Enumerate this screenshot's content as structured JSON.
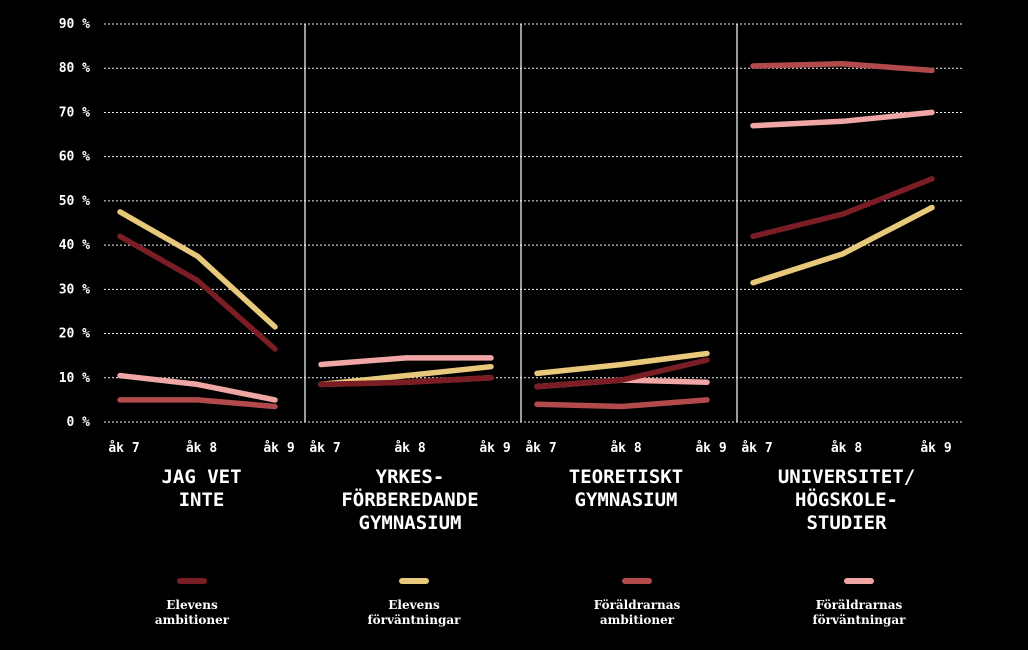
{
  "chart_data": {
    "type": "line",
    "ytick_labels": [
      "0 %",
      "10 %",
      "20 %",
      "30 %",
      "40 %",
      "50 %",
      "60 %",
      "70 %",
      "80 %",
      "90 %"
    ],
    "ylim": [
      0,
      90
    ],
    "grid": true,
    "legend_placement": "bottom",
    "x_labels": [
      "åk 7",
      "åk 8",
      "åk 9"
    ],
    "panels": [
      {
        "title_lines": [
          "JAG VET",
          "INTE"
        ],
        "series": [
          {
            "name": "Elevens ambitioner",
            "values": [
              42,
              32,
              16.5
            ]
          },
          {
            "name": "Elevens förväntningar",
            "values": [
              47.5,
              37.5,
              21.5
            ]
          },
          {
            "name": "Föräldrarnas ambitioner",
            "values": [
              5,
              5,
              3.5
            ]
          },
          {
            "name": "Föräldrarnas förväntningar",
            "values": [
              10.5,
              8.5,
              5
            ]
          }
        ]
      },
      {
        "title_lines": [
          "YRKES-",
          "FÖRBEREDANDE",
          "GYMNASIUM"
        ],
        "series": [
          {
            "name": "Elevens ambitioner",
            "values": [
              8.5,
              9,
              10
            ]
          },
          {
            "name": "Elevens förväntningar",
            "values": [
              8.5,
              10.5,
              12.5
            ]
          },
          {
            "name": "Föräldrarnas ambitioner",
            "values": [
              8.5,
              9,
              10
            ]
          },
          {
            "name": "Föräldrarnas förväntningar",
            "values": [
              13,
              14.5,
              14.5
            ]
          }
        ]
      },
      {
        "title_lines": [
          "TEORETISKT",
          "GYMNASIUM"
        ],
        "series": [
          {
            "name": "Elevens ambitioner",
            "values": [
              8,
              9.5,
              14
            ]
          },
          {
            "name": "Elevens förväntningar",
            "values": [
              11,
              13,
              15.5
            ]
          },
          {
            "name": "Föräldrarnas ambitioner",
            "values": [
              4,
              3.5,
              5
            ]
          },
          {
            "name": "Föräldrarnas förväntningar",
            "values": [
              8,
              9.5,
              9
            ]
          }
        ]
      },
      {
        "title_lines": [
          "UNIVERSITET/",
          "HÖGSKOLE-",
          "STUDIER"
        ],
        "series": [
          {
            "name": "Elevens ambitioner",
            "values": [
              42,
              47,
              55
            ]
          },
          {
            "name": "Elevens förväntningar",
            "values": [
              31.5,
              38,
              48.5
            ]
          },
          {
            "name": "Föräldrarnas ambitioner",
            "values": [
              80.5,
              81,
              79.5
            ]
          },
          {
            "name": "Föräldrarnas förväntningar",
            "values": [
              67,
              68,
              70
            ]
          }
        ]
      }
    ],
    "legend": [
      {
        "name": "Elevens ambitioner",
        "label_lines": [
          "Elevens",
          "ambitioner"
        ],
        "color": "#7a1d24"
      },
      {
        "name": "Elevens förväntningar",
        "label_lines": [
          "Elevens",
          "förväntningar"
        ],
        "color": "#e8c97c"
      },
      {
        "name": "Föräldrarnas ambitioner",
        "label_lines": [
          "Föräldrarnas",
          "ambitioner"
        ],
        "color": "#b24a4c"
      },
      {
        "name": "Föräldrarnas förväntningar",
        "label_lines": [
          "Föräldrarnas",
          "förväntningar"
        ],
        "color": "#f0a6a4"
      }
    ]
  }
}
